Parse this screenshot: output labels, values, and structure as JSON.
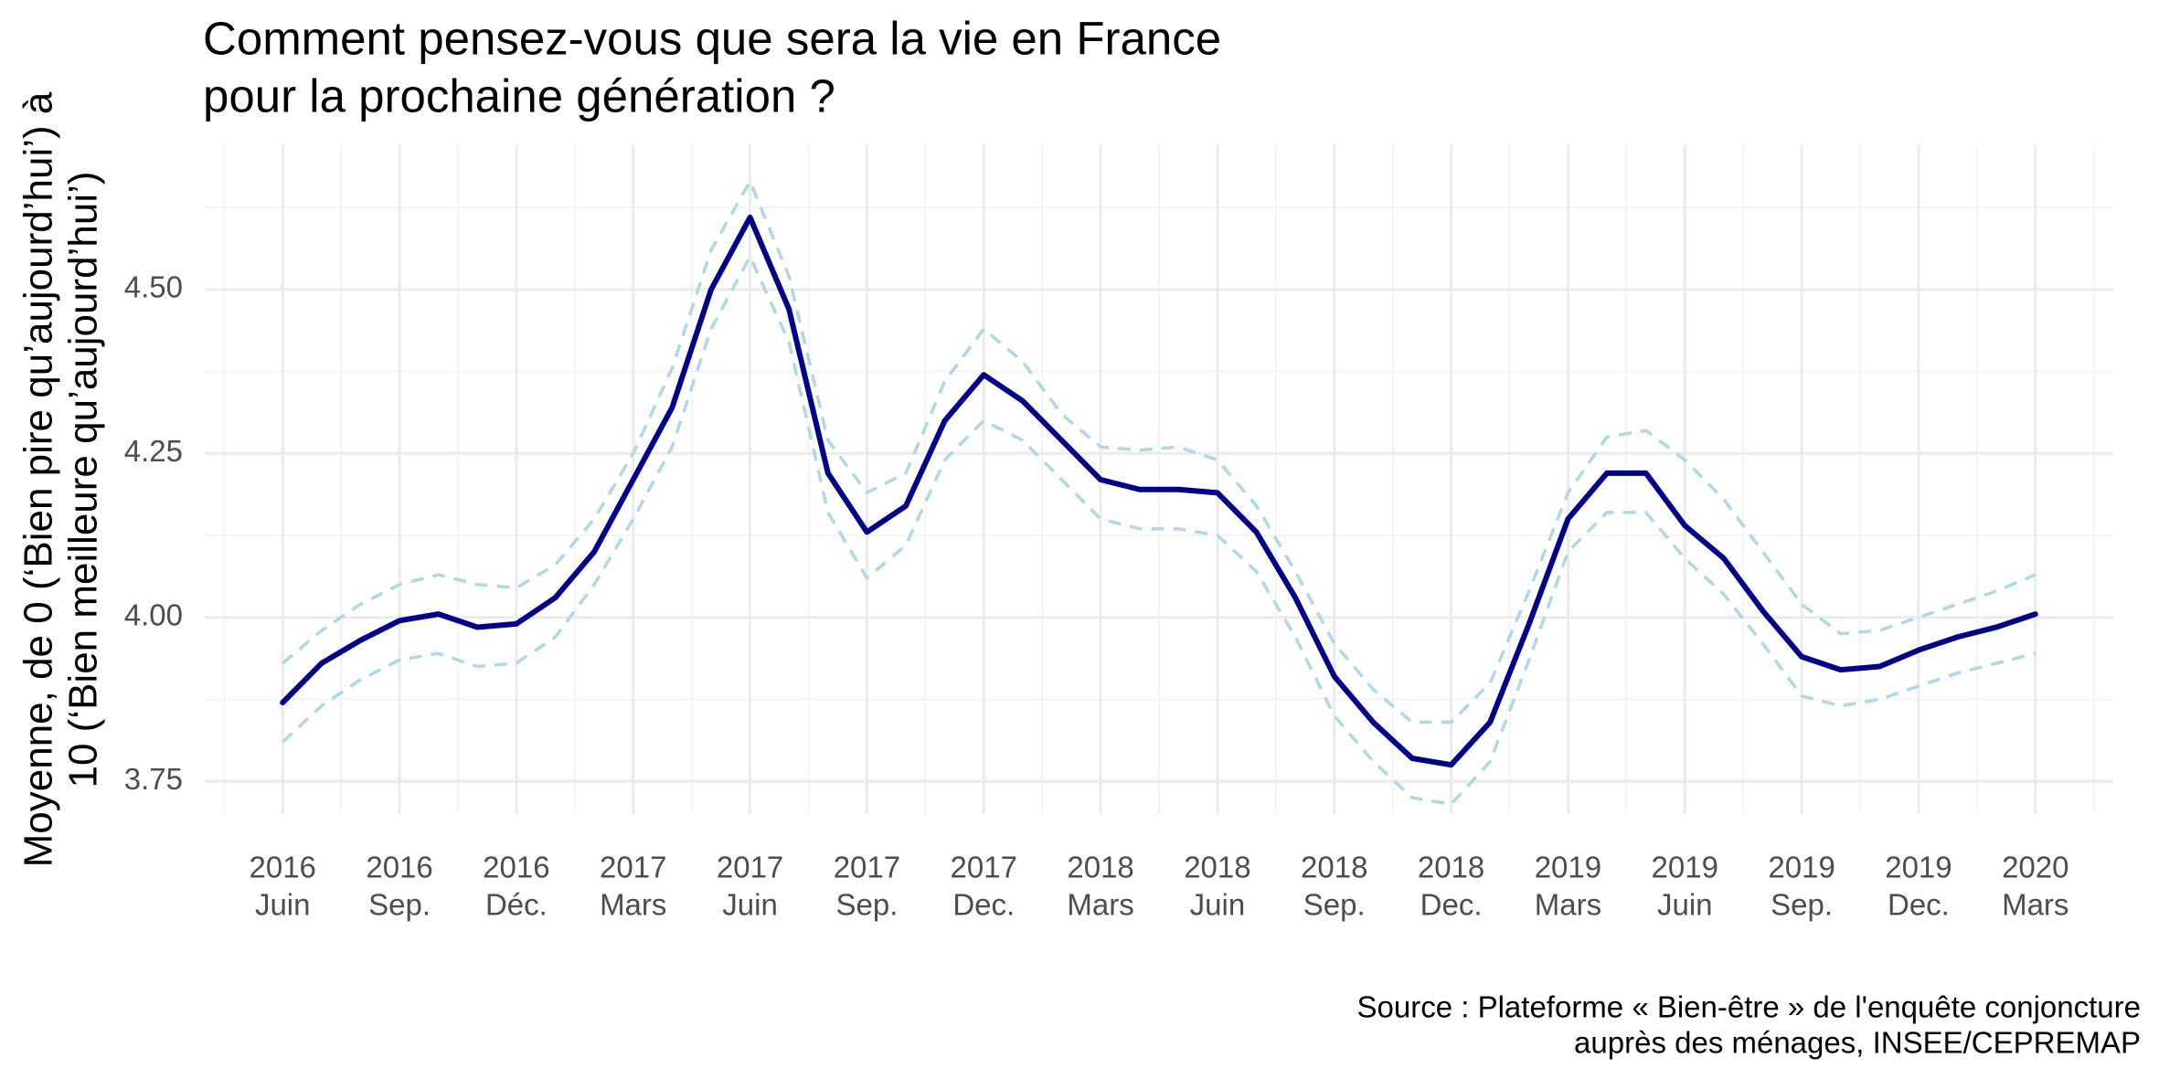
{
  "chart_data": {
    "type": "line",
    "title": [
      "Comment pensez-vous que sera la vie en France",
      "pour la prochaine génération ?"
    ],
    "y_label": [
      "Moyenne, de 0 (‘Bien pire qu’aujourd’hui’) à",
      "10 (‘Bien meilleure qu’aujourd’hui’)"
    ],
    "caption": [
      "Source : Plateforme « Bien-être » de l'enquête conjoncture ",
      "auprès des ménages, INSEE/CEPREMAP"
    ],
    "x": [
      "2016-06",
      "2016-07",
      "2016-08",
      "2016-09",
      "2016-10",
      "2016-11",
      "2016-12",
      "2017-01",
      "2017-02",
      "2017-03",
      "2017-04",
      "2017-05",
      "2017-06",
      "2017-07",
      "2017-08",
      "2017-09",
      "2017-10",
      "2017-11",
      "2017-12",
      "2018-01",
      "2018-02",
      "2018-03",
      "2018-04",
      "2018-05",
      "2018-06",
      "2018-07",
      "2018-08",
      "2018-09",
      "2018-10",
      "2018-11",
      "2018-12",
      "2019-01",
      "2019-02",
      "2019-03",
      "2019-04",
      "2019-05",
      "2019-06",
      "2019-07",
      "2019-08",
      "2019-09",
      "2019-10",
      "2019-11",
      "2019-12",
      "2020-01",
      "2020-02",
      "2020-03"
    ],
    "series": [
      {
        "color": "#add8e6",
        "dashed": true,
        "values": [
          3.93,
          3.98,
          4.02,
          4.05,
          4.065,
          4.05,
          4.045,
          4.08,
          4.15,
          4.25,
          4.38,
          4.56,
          4.665,
          4.52,
          4.27,
          4.19,
          4.22,
          4.36,
          4.44,
          4.39,
          4.31,
          4.26,
          4.255,
          4.26,
          4.24,
          4.17,
          4.07,
          3.96,
          3.89,
          3.84,
          3.84,
          3.9,
          4.04,
          4.19,
          4.275,
          4.285,
          4.24,
          4.18,
          4.1,
          4.02,
          3.975,
          3.98,
          4.0,
          4.02,
          4.04,
          4.065
        ]
      },
      {
        "color": "#add8e6",
        "dashed": true,
        "values": [
          3.81,
          3.865,
          3.905,
          3.935,
          3.945,
          3.925,
          3.93,
          3.97,
          4.05,
          4.15,
          4.26,
          4.44,
          4.55,
          4.42,
          4.16,
          4.06,
          4.11,
          4.24,
          4.3,
          4.27,
          4.21,
          4.15,
          4.135,
          4.135,
          4.125,
          4.07,
          3.97,
          3.85,
          3.78,
          3.725,
          3.715,
          3.78,
          3.935,
          4.1,
          4.16,
          4.16,
          4.09,
          4.035,
          3.96,
          3.88,
          3.865,
          3.875,
          3.895,
          3.915,
          3.93,
          3.945
        ]
      },
      {
        "color": "#00008b",
        "dashed": false,
        "values": [
          3.87,
          3.93,
          3.965,
          3.995,
          4.005,
          3.985,
          3.99,
          4.03,
          4.1,
          4.21,
          4.32,
          4.5,
          4.61,
          4.47,
          4.22,
          4.13,
          4.17,
          4.3,
          4.37,
          4.33,
          4.27,
          4.21,
          4.195,
          4.195,
          4.19,
          4.13,
          4.03,
          3.91,
          3.84,
          3.785,
          3.775,
          3.84,
          3.99,
          4.15,
          4.22,
          4.22,
          4.14,
          4.09,
          4.01,
          3.94,
          3.92,
          3.925,
          3.95,
          3.97,
          3.985,
          4.005
        ]
      }
    ],
    "xlim": [
      "2016-04",
      "2020-05"
    ],
    "xticks": [
      {
        "value": "2016-06",
        "label": [
          "2016",
          "Juin"
        ]
      },
      {
        "value": "2016-09",
        "label": [
          "2016",
          "Sep."
        ]
      },
      {
        "value": "2016-12",
        "label": [
          "2016",
          "Déc."
        ]
      },
      {
        "value": "2017-03",
        "label": [
          "2017",
          "Mars"
        ]
      },
      {
        "value": "2017-06",
        "label": [
          "2017",
          "Juin"
        ]
      },
      {
        "value": "2017-09",
        "label": [
          "2017",
          "Sep."
        ]
      },
      {
        "value": "2017-12",
        "label": [
          "2017",
          "Dec."
        ]
      },
      {
        "value": "2018-03",
        "label": [
          "2018",
          "Mars"
        ]
      },
      {
        "value": "2018-06",
        "label": [
          "2018",
          "Juin"
        ]
      },
      {
        "value": "2018-09",
        "label": [
          "2018",
          "Sep."
        ]
      },
      {
        "value": "2018-12",
        "label": [
          "2018",
          "Dec."
        ]
      },
      {
        "value": "2019-03",
        "label": [
          "2019",
          "Mars"
        ]
      },
      {
        "value": "2019-06",
        "label": [
          "2019",
          "Juin"
        ]
      },
      {
        "value": "2019-09",
        "label": [
          "2019",
          "Sep."
        ]
      },
      {
        "value": "2019-12",
        "label": [
          "2019",
          "Dec."
        ]
      },
      {
        "value": "2020-03",
        "label": [
          "2020",
          "Mars"
        ]
      }
    ],
    "ylim": [
      3.7,
      4.72
    ],
    "yticks": [
      3.75,
      {
        "value": 4,
        "label": "4.00"
      },
      4.25,
      {
        "value": 4.5,
        "label": "4.50"
      }
    ],
    "grid": true,
    "minor_grid": true
  }
}
